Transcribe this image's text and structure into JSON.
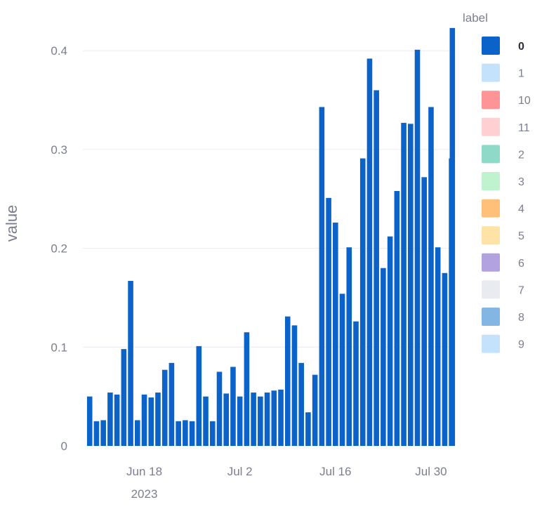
{
  "chart_data": {
    "type": "bar",
    "title": "",
    "xlabel": "",
    "ylabel": "value",
    "ylim": [
      0,
      0.43
    ],
    "y_ticks": [
      {
        "value": 0,
        "label": "0"
      },
      {
        "value": 0.1,
        "label": "0.1"
      },
      {
        "value": 0.2,
        "label": "0.2"
      },
      {
        "value": 0.3,
        "label": "0.3"
      },
      {
        "value": 0.4,
        "label": "0.4"
      }
    ],
    "x_range": [
      "2023-06-09",
      "2023-08-02"
    ],
    "x_ticks": [
      {
        "date": "2023-06-18",
        "label": "Jun 18",
        "sublabel": "2023"
      },
      {
        "date": "2023-07-02",
        "label": "Jul 2",
        "sublabel": ""
      },
      {
        "date": "2023-07-16",
        "label": "Jul 16",
        "sublabel": ""
      },
      {
        "date": "2023-07-30",
        "label": "Jul 30",
        "sublabel": ""
      }
    ],
    "grid": true,
    "legend": {
      "title": "label",
      "placement": "right",
      "entries": [
        {
          "name": "0",
          "color": "#0b63c9",
          "active": true
        },
        {
          "name": "1",
          "color": "#c4e2fb",
          "active": false
        },
        {
          "name": "10",
          "color": "#ff9496",
          "active": false
        },
        {
          "name": "11",
          "color": "#ffcfd2",
          "active": false
        },
        {
          "name": "2",
          "color": "#8ed9c8",
          "active": false
        },
        {
          "name": "3",
          "color": "#bff3cf",
          "active": false
        },
        {
          "name": "4",
          "color": "#ffc07a",
          "active": false
        },
        {
          "name": "5",
          "color": "#ffe2a6",
          "active": false
        },
        {
          "name": "6",
          "color": "#b3a2e0",
          "active": false
        },
        {
          "name": "7",
          "color": "#e8ebf0",
          "active": false
        },
        {
          "name": "8",
          "color": "#84b6e4",
          "active": false
        },
        {
          "name": "9",
          "color": "#c4e2fb",
          "active": false
        }
      ]
    },
    "series": [
      {
        "name": "0",
        "color": "#0b63c9",
        "x": [
          "2023-06-10",
          "2023-06-11",
          "2023-06-12",
          "2023-06-13",
          "2023-06-14",
          "2023-06-15",
          "2023-06-16",
          "2023-06-17",
          "2023-06-18",
          "2023-06-19",
          "2023-06-20",
          "2023-06-21",
          "2023-06-22",
          "2023-06-23",
          "2023-06-24",
          "2023-06-25",
          "2023-06-26",
          "2023-06-27",
          "2023-06-28",
          "2023-06-29",
          "2023-06-30",
          "2023-07-01",
          "2023-07-02",
          "2023-07-03",
          "2023-07-04",
          "2023-07-05",
          "2023-07-06",
          "2023-07-07",
          "2023-07-08",
          "2023-07-09",
          "2023-07-10",
          "2023-07-11",
          "2023-07-12",
          "2023-07-13",
          "2023-07-14",
          "2023-07-15",
          "2023-07-16",
          "2023-07-17",
          "2023-07-18",
          "2023-07-19",
          "2023-07-20",
          "2023-07-21",
          "2023-07-22",
          "2023-07-23",
          "2023-07-24",
          "2023-07-25",
          "2023-07-26",
          "2023-07-27",
          "2023-07-28",
          "2023-07-29",
          "2023-07-30",
          "2023-07-31",
          "2023-08-01",
          "2023-08-02"
        ],
        "values": [
          0.05,
          0.025,
          0.026,
          0.054,
          0.052,
          0.098,
          0.167,
          0.026,
          0.052,
          0.049,
          0.054,
          0.077,
          0.084,
          0.025,
          0.026,
          0.025,
          0.101,
          0.05,
          0.025,
          0.075,
          0.053,
          0.08,
          0.05,
          0.115,
          0.054,
          0.05,
          0.054,
          0.056,
          0.057,
          0.131,
          0.122,
          0.084,
          0.034,
          0.072,
          0.343,
          0.251,
          0.226,
          0.154,
          0.201,
          0.126,
          0.291,
          0.392,
          0.36,
          0.18,
          0.212,
          0.258,
          0.327,
          0.326,
          0.401,
          0.272,
          0.343,
          0.201,
          0.175,
          0.291
        ]
      }
    ],
    "extra_bar": {
      "x": "2023-08-02",
      "value": 0.423
    }
  }
}
